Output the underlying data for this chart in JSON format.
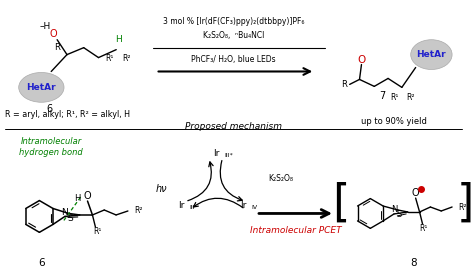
{
  "bg_color": "#ffffff",
  "colors": {
    "red": "#cc0000",
    "green": "#008000",
    "blue": "#2222cc",
    "black": "#000000",
    "gray_ell": "#c8c8c8",
    "gray_ell_edge": "#aaaaaa"
  },
  "reagent1": "3 mol % [Ir(dF(CF₃)ppy)₂(dtbbpy)]PF₆",
  "reagent2": "K₂S₂O₈,  ⁿBu₄NCl",
  "reagent3": "PhCF₃/ H₂O, blue LEDs",
  "substituents": "R = aryl, alkyl; R¹, R² = alkyl, H",
  "yield_text": "up to 90% yield",
  "mech_title": "Proposed mechanism",
  "intramol_hbond": "Intramolecular\nhydrogen bond",
  "intramol_pcet": "Intramolecular PCET",
  "hv": "hν",
  "K2S2O8": "K₂S₂O₈"
}
